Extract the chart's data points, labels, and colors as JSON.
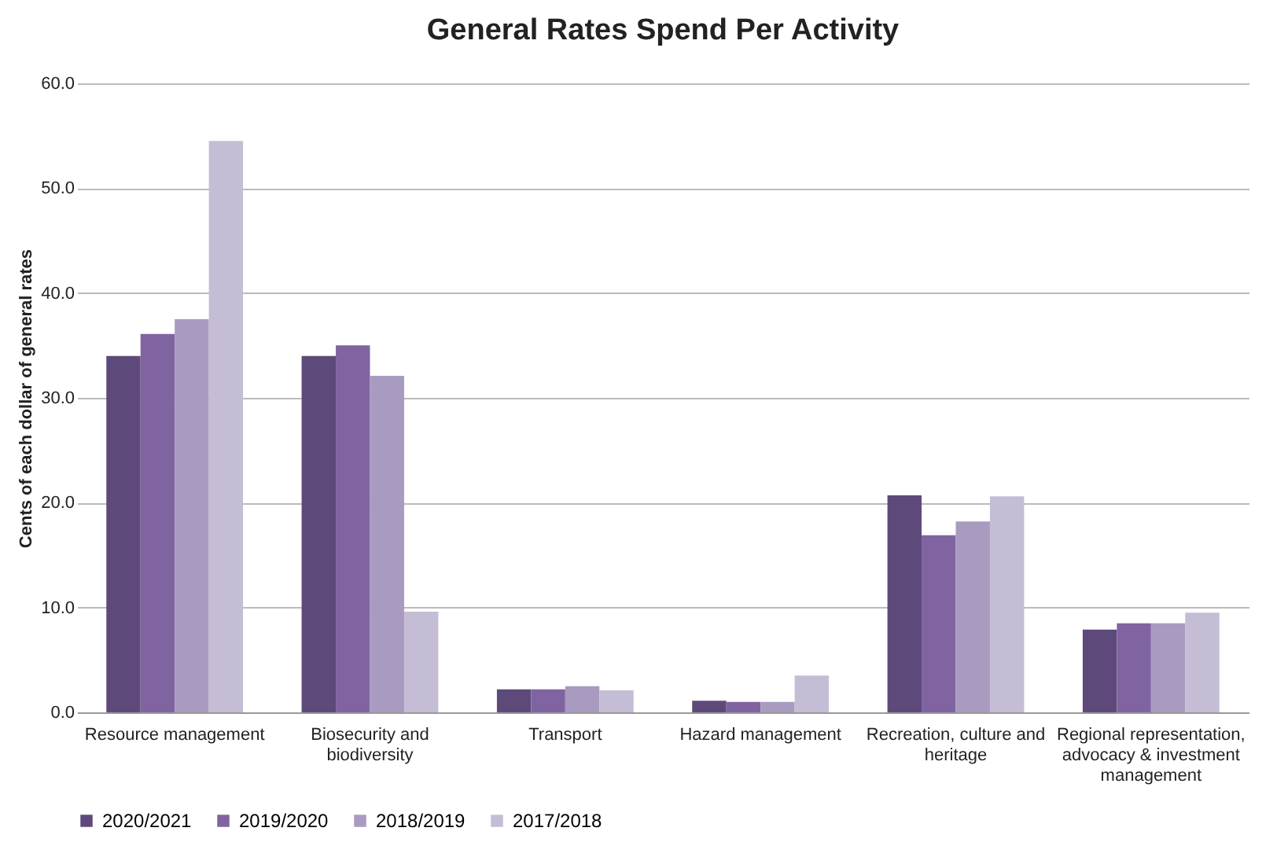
{
  "chart_data": {
    "type": "bar",
    "title": "General Rates Spend Per Activity",
    "ylabel": "Cents of each dollar of general rates",
    "categories": [
      "Resource management",
      "Biosecurity and biodiversity",
      "Transport",
      "Hazard management",
      "Recreation, culture and heritage",
      "Regional representation, advocacy & investment management"
    ],
    "series": [
      {
        "name": "2020/2021",
        "color": "#5e4a7a",
        "values": [
          34.0,
          34.0,
          2.2,
          1.1,
          20.7,
          7.9
        ]
      },
      {
        "name": "2019/2020",
        "color": "#8064a2",
        "values": [
          36.1,
          35.0,
          2.2,
          1.0,
          16.9,
          8.5
        ]
      },
      {
        "name": "2018/2019",
        "color": "#a99bc0",
        "values": [
          37.5,
          32.1,
          2.5,
          1.0,
          18.2,
          8.5
        ]
      },
      {
        "name": "2017/2018",
        "color": "#c5bdd5",
        "values": [
          54.5,
          9.6,
          2.1,
          3.5,
          20.6,
          9.5
        ]
      }
    ],
    "ylim": [
      0,
      60
    ],
    "yticks": [
      {
        "value": 0,
        "label": "0.0"
      },
      {
        "value": 10,
        "label": "10.0"
      },
      {
        "value": 20,
        "label": "20.0"
      },
      {
        "value": 30,
        "label": "30.0"
      },
      {
        "value": 40,
        "label": "40.0"
      },
      {
        "value": 50,
        "label": "50.0"
      },
      {
        "value": 60,
        "label": "60.0"
      }
    ],
    "grid": "y",
    "legend": "bottom"
  }
}
